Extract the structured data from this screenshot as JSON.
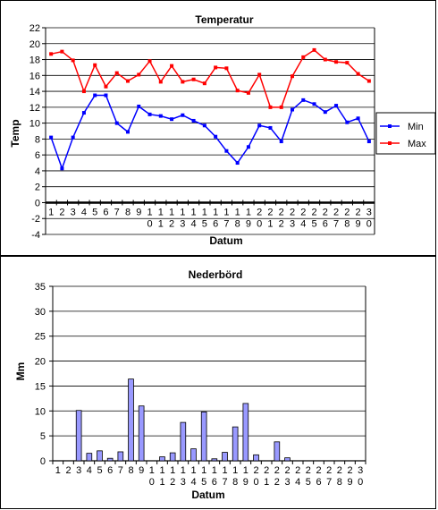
{
  "chart_data": [
    {
      "type": "line",
      "title": "Temperatur",
      "xlabel": "Datum",
      "ylabel": "Temp",
      "ylim": [
        -4,
        22
      ],
      "yticks": [
        -4,
        -2,
        0,
        2,
        4,
        6,
        8,
        10,
        12,
        14,
        16,
        18,
        20,
        22
      ],
      "grid": true,
      "legend": "right",
      "categories": [
        "1",
        "2",
        "3",
        "4",
        "5",
        "6",
        "7",
        "8",
        "9",
        "10",
        "11",
        "12",
        "13",
        "14",
        "15",
        "16",
        "17",
        "18",
        "19",
        "20",
        "21",
        "22",
        "23",
        "24",
        "25",
        "26",
        "27",
        "28",
        "29",
        "30"
      ],
      "series": [
        {
          "name": "Min",
          "color": "#0000ff",
          "values": [
            8.2,
            4.3,
            8.2,
            11.3,
            13.5,
            13.5,
            10.0,
            8.9,
            12.1,
            11.1,
            10.9,
            10.5,
            11.0,
            10.3,
            9.7,
            8.3,
            6.5,
            5.0,
            7.0,
            9.7,
            9.4,
            7.7,
            11.7,
            12.9,
            12.4,
            11.4,
            12.2,
            10.1,
            10.6,
            7.7
          ]
        },
        {
          "name": "Max",
          "color": "#ff0000",
          "values": [
            18.7,
            19.0,
            17.9,
            14.0,
            17.3,
            14.6,
            16.3,
            15.3,
            16.1,
            17.8,
            15.2,
            17.2,
            15.2,
            15.5,
            15.0,
            17.0,
            16.9,
            14.1,
            13.8,
            16.1,
            12.0,
            12.0,
            15.9,
            18.3,
            19.2,
            18.0,
            17.7,
            17.6,
            16.2,
            15.3
          ]
        }
      ]
    },
    {
      "type": "bar",
      "title": "Nederbörd",
      "xlabel": "Datum",
      "ylabel": "Mm",
      "ylim": [
        0,
        35
      ],
      "yticks": [
        0,
        5,
        10,
        15,
        20,
        25,
        30,
        35
      ],
      "grid": true,
      "bar_color": "#9999ff",
      "categories": [
        "1",
        "2",
        "3",
        "4",
        "5",
        "6",
        "7",
        "8",
        "9",
        "10",
        "11",
        "12",
        "13",
        "14",
        "15",
        "16",
        "17",
        "18",
        "19",
        "20",
        "21",
        "22",
        "23",
        "24",
        "25",
        "26",
        "27",
        "28",
        "29",
        "30"
      ],
      "values": [
        0,
        0,
        10.1,
        1.5,
        2.0,
        0.5,
        1.8,
        16.4,
        11.0,
        0,
        0.8,
        1.6,
        7.7,
        2.4,
        9.8,
        0.4,
        1.7,
        6.8,
        11.5,
        1.2,
        0,
        3.8,
        0.6,
        0,
        0,
        0,
        0,
        0,
        0,
        0
      ]
    }
  ]
}
